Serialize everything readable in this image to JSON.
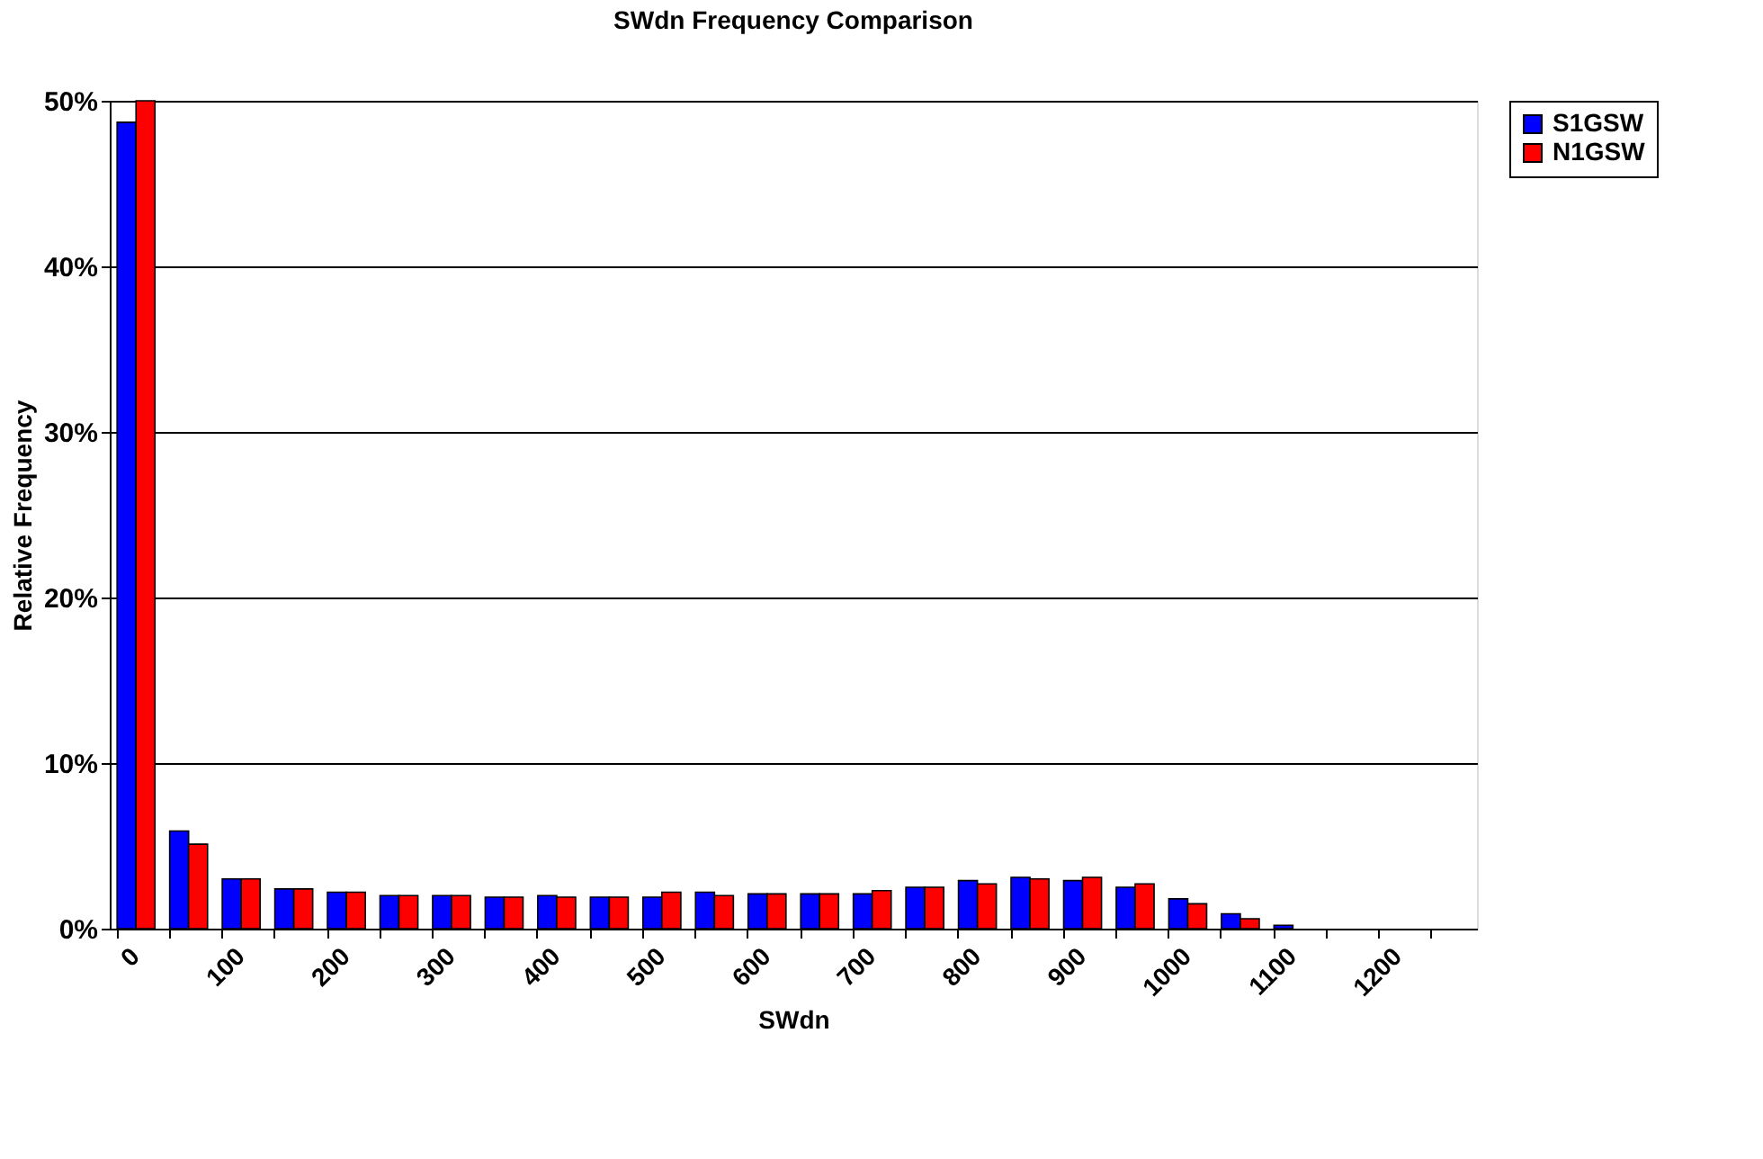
{
  "chart_data": {
    "type": "bar",
    "title": "SWdn Frequency Comparison",
    "xlabel": "SWdn",
    "ylabel": "Relative Frequency",
    "categories": [
      "0",
      null,
      "100",
      null,
      "200",
      null,
      "300",
      null,
      "400",
      null,
      "500",
      null,
      "600",
      null,
      "700",
      null,
      "800",
      null,
      "900",
      null,
      "1000",
      null,
      "1100",
      null,
      "1200",
      null
    ],
    "series": [
      {
        "name": "S1GSW",
        "color": "#0000ff",
        "values": [
          48.7,
          5.9,
          3.0,
          2.4,
          2.2,
          2.0,
          2.0,
          1.9,
          2.0,
          1.9,
          1.9,
          2.2,
          2.1,
          2.1,
          2.1,
          2.5,
          2.9,
          3.1,
          2.9,
          2.5,
          1.8,
          0.9,
          0.2,
          0,
          0,
          0
        ]
      },
      {
        "name": "N1GSW",
        "color": "#ff0000",
        "values": [
          50,
          5.1,
          3.0,
          2.4,
          2.2,
          2.0,
          2.0,
          1.9,
          1.9,
          1.9,
          2.2,
          2.0,
          2.1,
          2.1,
          2.3,
          2.5,
          2.7,
          3.0,
          3.1,
          2.7,
          1.5,
          0.6,
          0,
          0,
          0,
          0
        ]
      }
    ],
    "ylim": [
      0,
      50
    ],
    "yticks": [
      {
        "value": 0,
        "label": "0%"
      },
      {
        "value": 10,
        "label": "10%"
      },
      {
        "value": 20,
        "label": "20%"
      },
      {
        "value": 30,
        "label": "30%"
      },
      {
        "value": 40,
        "label": "40%"
      },
      {
        "value": 50,
        "label": "50%"
      }
    ],
    "grid": "y",
    "legend": "right"
  }
}
